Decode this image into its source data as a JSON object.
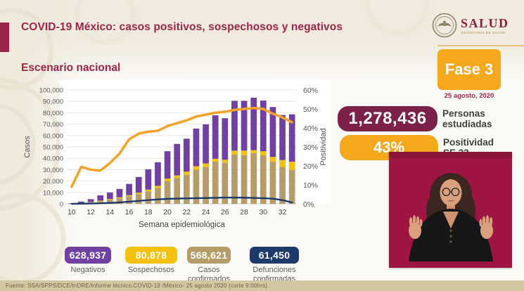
{
  "page": {
    "background_cream": "#f1ebdf",
    "accent_maroon": "#9d2449",
    "accent_orange": "#f5a81c"
  },
  "header": {
    "title": "COVID-19 México: casos positivos, sospechosos y negativos",
    "section_title": "Escenario nacional",
    "logo": {
      "name": "SALUD",
      "subtitle": "SECRETARÍA DE SALUD"
    }
  },
  "phase": {
    "label": "Fase 3",
    "date": "25 agosto, 2020"
  },
  "kpis": [
    {
      "value": "1,278,436",
      "label": "Personas estudiadas",
      "color": "#7c2149"
    },
    {
      "value": "43%",
      "label": "Positividad SE 33",
      "color": "#f5a81c"
    }
  ],
  "summary_stats": [
    {
      "value": "628,937",
      "label": "Negativos",
      "color": "#7040a3"
    },
    {
      "value": "80,878",
      "label": "Sospechosos",
      "color": "#f3c10e"
    },
    {
      "value": "568,621",
      "label": "Casos confirmados",
      "color": "#b59c68"
    },
    {
      "value": "61,450",
      "label": "Defunciones confirmadas",
      "color": "#1d3a6b"
    }
  ],
  "footer": {
    "source": "Fuente: SSA/SPPS/DCE/InDRE/Informe técnico.COVID-19 /México- 25 agosto 2020 (corte 9:00hrs)"
  },
  "video_overlay": {
    "description": "Intérprete de lengua de señas",
    "background": "#9e1443"
  },
  "chart_data": {
    "type": "bar",
    "subtype": "stacked bars with two overlay lines",
    "xlabel": "Semana epidemiológica",
    "ylabel_left": "Casos",
    "ylabel_right": "Positividad",
    "x": [
      10,
      11,
      12,
      13,
      14,
      15,
      16,
      17,
      18,
      19,
      20,
      21,
      22,
      23,
      24,
      25,
      26,
      27,
      28,
      29,
      30,
      31,
      32,
      33
    ],
    "ylim_left": [
      0,
      100000
    ],
    "ytick_step_left": 10000,
    "ylim_right": [
      0,
      60
    ],
    "ytick_step_right": 10,
    "grid": true,
    "legend_position": "none (color-keyed summary pills below)",
    "bar_series": [
      {
        "name": "Casos confirmados",
        "color": "#b59c68",
        "values": [
          200,
          600,
          1300,
          2300,
          3600,
          4900,
          6600,
          8600,
          11000,
          14000,
          20000,
          22500,
          25500,
          30000,
          32500,
          37000,
          36000,
          43200,
          42800,
          44500,
          42600,
          37000,
          32500,
          29800
        ]
      },
      {
        "name": "Sospechosos",
        "color": "#f3c10e",
        "values": [
          100,
          200,
          300,
          500,
          600,
          800,
          1000,
          1200,
          1500,
          1800,
          2200,
          2500,
          2800,
          3000,
          3000,
          2600,
          2700,
          3500,
          3900,
          2600,
          3600,
          4200,
          6000,
          7200
        ]
      },
      {
        "name": "Negativos",
        "color": "#7040a3",
        "values": [
          300,
          1200,
          2500,
          4700,
          5800,
          7400,
          9900,
          13800,
          17800,
          20700,
          24000,
          27600,
          28900,
          33100,
          34300,
          38100,
          36500,
          43800,
          43800,
          46100,
          44500,
          43800,
          39500,
          41600
        ]
      }
    ],
    "line_series": [
      {
        "name": "Defunciones confirmadas",
        "color": "#1d3a6b",
        "axis": "left",
        "values": [
          50,
          150,
          300,
          500,
          800,
          1300,
          1900,
          2600,
          3300,
          3900,
          4400,
          4600,
          4800,
          5000,
          5100,
          5300,
          5500,
          5500,
          5400,
          5200,
          5000,
          4500,
          3300,
          1200
        ]
      },
      {
        "name": "Positividad",
        "color": "#f5a228",
        "axis": "right",
        "values": [
          9,
          19.5,
          18,
          17.5,
          21.5,
          26.5,
          34,
          37,
          38,
          38.5,
          41,
          42.5,
          44,
          46,
          47,
          48,
          48.5,
          49.5,
          50,
          50.5,
          50,
          47.5,
          45.5,
          43
        ]
      }
    ]
  }
}
